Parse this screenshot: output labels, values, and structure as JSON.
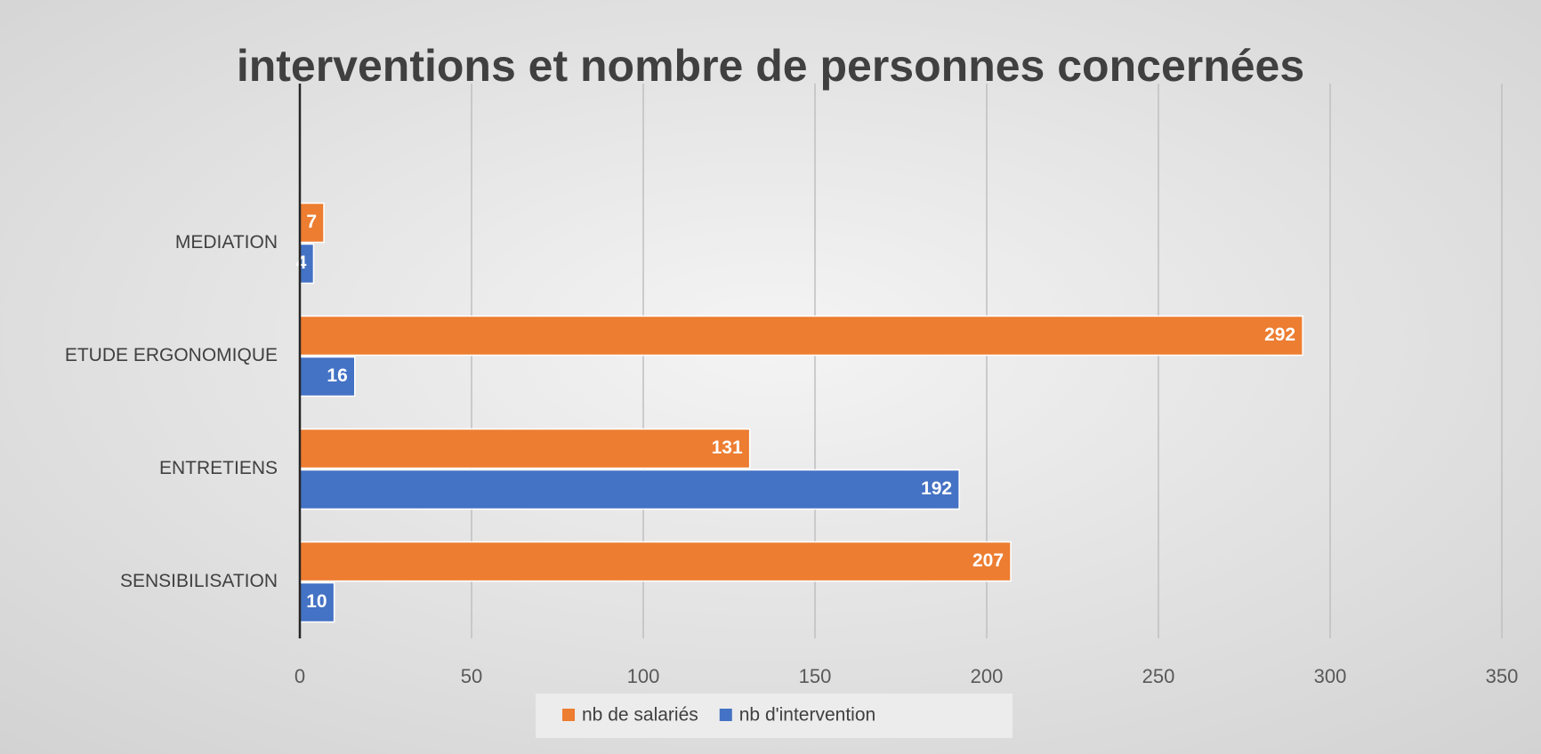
{
  "chart_data": {
    "type": "hbar",
    "title": "interventions et nombre de personnes concernées",
    "categories": [
      "SENSIBILISATION",
      "ENTRETIENS",
      "ETUDE ERGONOMIQUE",
      "MEDIATION"
    ],
    "series": [
      {
        "name": "nb de salariés",
        "color": "#ed7d31",
        "values": [
          207,
          131,
          292,
          7
        ]
      },
      {
        "name": "nb d'intervention",
        "color": "#4472c4",
        "values": [
          10,
          192,
          16,
          4
        ]
      }
    ],
    "xlim": [
      0,
      350
    ],
    "xticks": [
      0,
      50,
      100,
      150,
      200,
      250,
      300,
      350
    ],
    "grid": true,
    "legend": "bottom"
  }
}
